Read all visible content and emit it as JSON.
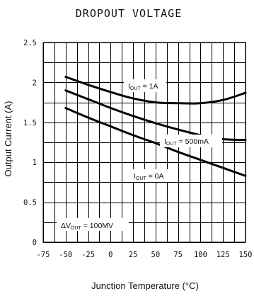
{
  "chart_data": {
    "type": "line",
    "title": "DROPOUT VOLTAGE",
    "xlabel": "Junction Temperature (°C)",
    "ylabel": "Output Current (A)",
    "xlim": [
      -75,
      150
    ],
    "ylim": [
      0,
      2.5
    ],
    "x_ticks": [
      "-75",
      "-50",
      "-25",
      "0",
      "25",
      "50",
      "75",
      "100",
      "125",
      "150"
    ],
    "y_ticks": [
      "0",
      "0.5",
      "1",
      "1.5",
      "2",
      "2.5"
    ],
    "x_grid_step": 12.5,
    "y_grid_step": 0.25,
    "grid": true,
    "colors": {
      "line": "#000000",
      "grid": "#000000",
      "background": "#ffffff"
    },
    "series": [
      {
        "label_main": "I",
        "label_sub": "OUT",
        "label_rest": " = 1A",
        "x": [
          -50,
          -25,
          0,
          25,
          50,
          75,
          100,
          125,
          150
        ],
        "y": [
          2.07,
          1.97,
          1.88,
          1.8,
          1.75,
          1.74,
          1.74,
          1.78,
          1.87
        ]
      },
      {
        "label_main": "I",
        "label_sub": "OUT",
        "label_rest": " = 500mA",
        "x": [
          -50,
          -25,
          0,
          25,
          50,
          75,
          100,
          125,
          150
        ],
        "y": [
          1.9,
          1.79,
          1.68,
          1.58,
          1.49,
          1.41,
          1.34,
          1.29,
          1.28
        ]
      },
      {
        "label_main": "I",
        "label_sub": "OUT",
        "label_rest": " = 0A",
        "x": [
          -50,
          -25,
          0,
          25,
          50,
          75,
          100,
          125,
          150
        ],
        "y": [
          1.68,
          1.56,
          1.45,
          1.34,
          1.24,
          1.13,
          1.03,
          0.93,
          0.83
        ]
      }
    ],
    "annotations": [
      {
        "prefix": "ΔV",
        "sub": "OUT",
        "rest": " = 100MV"
      }
    ]
  }
}
